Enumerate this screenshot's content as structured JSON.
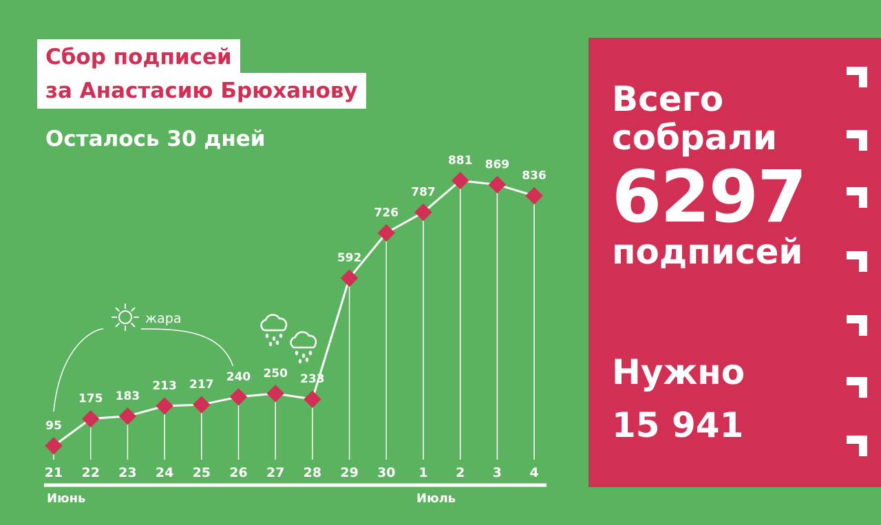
{
  "header": {
    "title_line1": "Сбор подписей",
    "title_line2": "за Анастасию Брюханову",
    "subtitle": "Осталось 30 дней"
  },
  "panel": {
    "total_line1": "Всего",
    "total_line2": "собрали",
    "total_value": "6297",
    "total_unit": "подписей",
    "need_label": "Нужно",
    "need_value": "15 941"
  },
  "annotations": {
    "heat_label": "жара",
    "heat_icon": "sun-icon",
    "rain_icon": "rain-cloud-icon"
  },
  "colors": {
    "background": "#5cb35f",
    "accent": "#d12f53",
    "line": "#ffffff"
  },
  "chart_data": {
    "type": "line",
    "title": "Сбор подписей за Анастасию Брюханову",
    "categories": [
      "21",
      "22",
      "23",
      "24",
      "25",
      "26",
      "27",
      "28",
      "29",
      "30",
      "1",
      "2",
      "3",
      "4"
    ],
    "months": [
      {
        "label": "Июнь",
        "start_category": "21"
      },
      {
        "label": "Июль",
        "start_category": "1"
      }
    ],
    "values": [
      95,
      175,
      183,
      213,
      217,
      240,
      250,
      233,
      592,
      726,
      787,
      881,
      869,
      836
    ],
    "heat_range": [
      "21",
      "26"
    ],
    "rain_days": [
      "27",
      "28"
    ],
    "ylim": [
      0,
      900
    ],
    "grid": false
  }
}
